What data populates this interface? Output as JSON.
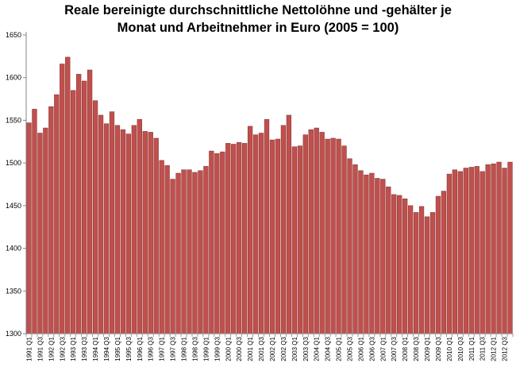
{
  "chart_data": {
    "type": "bar",
    "title_lines": [
      "Reale bereinigte durchschnittliche Nettolöhne und -gehälter je",
      "Monat und Arbeitnehmer  in Euro (2005 = 100)"
    ],
    "xlabel": "",
    "ylabel": "",
    "ylim": [
      1300,
      1650
    ],
    "yticks": [
      1300,
      1350,
      1400,
      1450,
      1500,
      1550,
      1600,
      1650
    ],
    "grid": false,
    "legend": "none",
    "bar_color": "#c0504d",
    "bar_edge_color": "#8c3836",
    "categories": [
      "1991 Q1",
      "1991 Q2",
      "1991 Q3",
      "1991 Q4",
      "1992 Q1",
      "1992 Q2",
      "1992 Q3",
      "1992 Q4",
      "1993 Q1",
      "1993 Q2",
      "1993 Q3",
      "1993 Q4",
      "1994 Q1",
      "1994 Q2",
      "1994 Q3",
      "1994 Q4",
      "1995 Q1",
      "1995 Q2",
      "1995 Q3",
      "1995 Q4",
      "1996 Q1",
      "1996 Q2",
      "1996 Q3",
      "1996 Q4",
      "1997 Q1",
      "1997 Q2",
      "1997 Q3",
      "1997 Q4",
      "1998 Q1",
      "1998 Q2",
      "1998 Q3",
      "1998 Q4",
      "1999 Q1",
      "1999 Q2",
      "1999 Q3",
      "1999 Q4",
      "2000 Q1",
      "2000 Q2",
      "2000 Q3",
      "2000 Q4",
      "2001 Q1",
      "2001 Q2",
      "2001 Q3",
      "2001 Q4",
      "2002 Q1",
      "2002 Q2",
      "2002 Q3",
      "2002 Q4",
      "2003 Q1",
      "2003 Q2",
      "2003 Q3",
      "2003 Q4",
      "2004 Q1",
      "2004 Q2",
      "2004 Q3",
      "2004 Q4",
      "2005 Q1",
      "2005 Q2",
      "2005 Q3",
      "2005 Q4",
      "2006 Q1",
      "2006 Q2",
      "2006 Q3",
      "2006 Q4",
      "2007 Q1",
      "2007 Q2",
      "2007 Q3",
      "2007 Q4",
      "2008 Q1",
      "2008 Q2",
      "2008 Q3",
      "2008 Q4",
      "2009 Q1",
      "2009 Q2",
      "2009 Q3",
      "2009 Q4",
      "2010 Q1",
      "2010 Q2",
      "2010 Q3",
      "2010 Q4",
      "2011 Q1",
      "2011 Q2",
      "2011 Q3",
      "2011 Q4",
      "2012 Q1",
      "2012 Q2",
      "2012 Q3",
      "2012 Q4"
    ],
    "tick_labels": [
      "1991 Q1",
      "1991 Q3",
      "1992 Q1",
      "1992 Q3",
      "1993 Q1",
      "1993 Q3",
      "1994 Q1",
      "1994 Q3",
      "1995 Q1",
      "1995 Q3",
      "1996 Q1",
      "1996 Q3",
      "1997 Q1",
      "1997 Q3",
      "1998 Q1",
      "1998 Q3",
      "1999 Q1",
      "1999 Q3",
      "2000 Q1",
      "2000 Q3",
      "2001 Q1",
      "2001 Q3",
      "2002 Q1",
      "2002 Q3",
      "2003 Q1",
      "2003 Q3",
      "2004 Q1",
      "2004 Q3",
      "2005 Q1",
      "2005 Q3",
      "2006 Q1",
      "2006 Q3",
      "2007 Q1",
      "2007 Q3",
      "2008 Q1",
      "2008 Q3",
      "2009 Q1",
      "2009 Q3",
      "2010 Q1",
      "2010 Q3",
      "2011 Q1",
      "2011 Q3",
      "2012 Q1",
      "2012 Q3"
    ],
    "values": [
      1547,
      1563,
      1535,
      1541,
      1566,
      1580,
      1616,
      1624,
      1585,
      1604,
      1596,
      1609,
      1573,
      1556,
      1546,
      1560,
      1544,
      1539,
      1534,
      1544,
      1551,
      1537,
      1536,
      1529,
      1503,
      1497,
      1481,
      1488,
      1492,
      1492,
      1489,
      1491,
      1496,
      1514,
      1511,
      1513,
      1523,
      1522,
      1524,
      1523,
      1543,
      1533,
      1535,
      1551,
      1527,
      1528,
      1544,
      1556,
      1519,
      1520,
      1533,
      1539,
      1541,
      1536,
      1528,
      1529,
      1528,
      1520,
      1505,
      1498,
      1491,
      1486,
      1488,
      1482,
      1481,
      1472,
      1463,
      1462,
      1458,
      1450,
      1442,
      1449,
      1437,
      1442,
      1461,
      1467,
      1487,
      1492,
      1490,
      1494,
      1495,
      1496,
      1490,
      1498,
      1499,
      1501,
      1494,
      1501
    ]
  }
}
